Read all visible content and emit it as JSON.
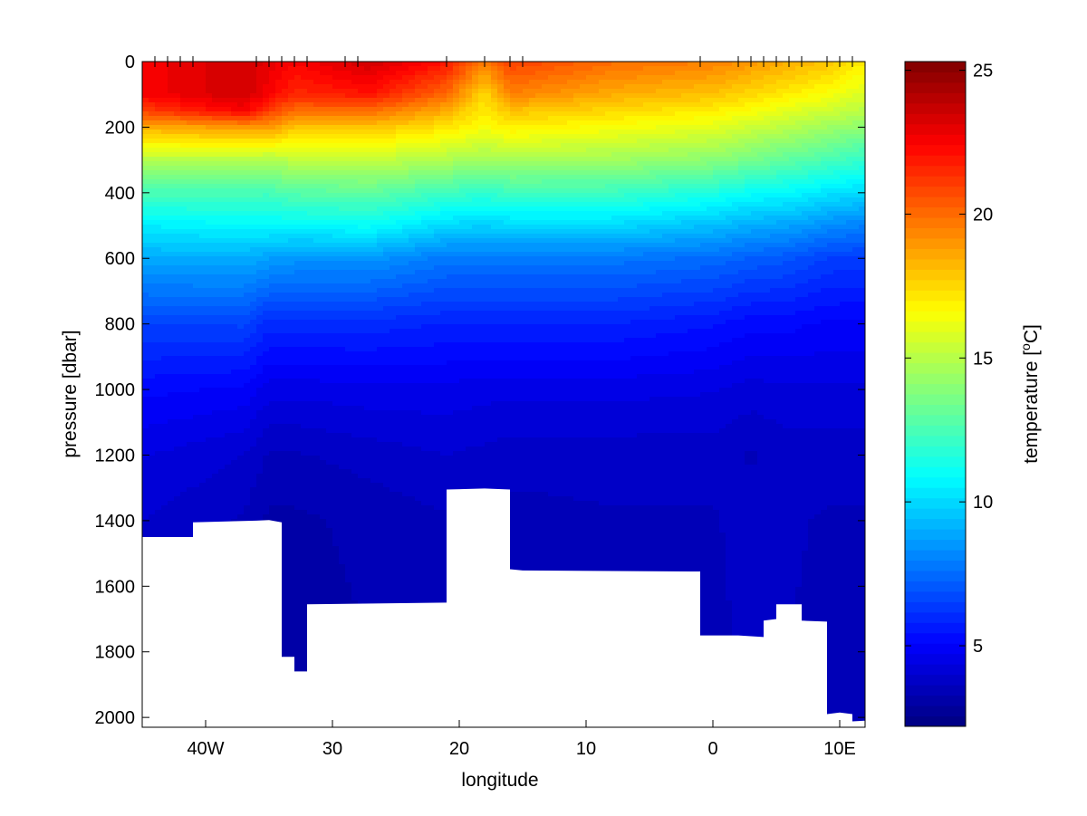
{
  "chart_data": {
    "type": "heatmap",
    "title": "",
    "xlabel": "longitude",
    "ylabel": "pressure [dbar]",
    "xlim": [
      -45,
      12
    ],
    "ylim": [
      0,
      2030
    ],
    "y_reversed": true,
    "x_ticks": [
      {
        "value": -40,
        "label": "40W"
      },
      {
        "value": -30,
        "label": "30"
      },
      {
        "value": -20,
        "label": "20"
      },
      {
        "value": -10,
        "label": "10"
      },
      {
        "value": 0,
        "label": "0"
      },
      {
        "value": 10,
        "label": "10E"
      }
    ],
    "y_ticks": [
      0,
      200,
      400,
      600,
      800,
      1000,
      1200,
      1400,
      1600,
      1800,
      2000
    ],
    "station_longitudes": [
      -44,
      -43,
      -42,
      -41,
      -36,
      -35,
      -34,
      -33,
      -32,
      -29,
      -28,
      -21,
      -18,
      -16,
      -15,
      -1,
      2,
      3,
      4,
      5,
      6,
      7,
      9,
      10,
      11
    ],
    "bottom_profile": [
      {
        "lon": -45,
        "pressure": 1450
      },
      {
        "lon": -41,
        "pressure": 1450
      },
      {
        "lon": -41,
        "pressure": 1405
      },
      {
        "lon": -36,
        "pressure": 1400
      },
      {
        "lon": -35,
        "pressure": 1398
      },
      {
        "lon": -34,
        "pressure": 1405
      },
      {
        "lon": -34,
        "pressure": 1815
      },
      {
        "lon": -33,
        "pressure": 1815
      },
      {
        "lon": -33,
        "pressure": 1860
      },
      {
        "lon": -32,
        "pressure": 1860
      },
      {
        "lon": -32,
        "pressure": 1655
      },
      {
        "lon": -21,
        "pressure": 1650
      },
      {
        "lon": -21,
        "pressure": 1305
      },
      {
        "lon": -18,
        "pressure": 1302
      },
      {
        "lon": -16,
        "pressure": 1305
      },
      {
        "lon": -16,
        "pressure": 1548
      },
      {
        "lon": -15,
        "pressure": 1552
      },
      {
        "lon": -1,
        "pressure": 1555
      },
      {
        "lon": -1,
        "pressure": 1750
      },
      {
        "lon": 2,
        "pressure": 1750
      },
      {
        "lon": 4,
        "pressure": 1755
      },
      {
        "lon": 4,
        "pressure": 1705
      },
      {
        "lon": 5,
        "pressure": 1700
      },
      {
        "lon": 5,
        "pressure": 1655
      },
      {
        "lon": 7,
        "pressure": 1655
      },
      {
        "lon": 7,
        "pressure": 1705
      },
      {
        "lon": 9,
        "pressure": 1708
      },
      {
        "lon": 9,
        "pressure": 1990
      },
      {
        "lon": 10,
        "pressure": 1985
      },
      {
        "lon": 11,
        "pressure": 1990
      },
      {
        "lon": 11,
        "pressure": 2012
      },
      {
        "lon": 12,
        "pressure": 2010
      }
    ],
    "temperature_profiles": [
      {
        "lon": -45,
        "pressure": [
          0,
          100,
          150,
          200,
          300,
          400,
          500,
          600,
          800,
          1000,
          1200,
          1400,
          2030
        ],
        "temperature": [
          22.5,
          22.5,
          21,
          18.5,
          15,
          12.5,
          10.5,
          9,
          6.5,
          5.2,
          4.4,
          4,
          3.8
        ]
      },
      {
        "lon": -37,
        "pressure": [
          0,
          100,
          150,
          200,
          300,
          400,
          500,
          600,
          800,
          1000,
          1200,
          1400,
          2030
        ],
        "temperature": [
          23.5,
          23.5,
          22.5,
          19,
          15,
          12.5,
          10.8,
          9,
          6.6,
          5,
          4,
          3.6,
          3.4
        ]
      },
      {
        "lon": -35,
        "pressure": [
          0,
          100,
          150,
          200,
          300,
          400,
          500,
          600,
          800,
          1000,
          1200,
          1400,
          2030
        ],
        "temperature": [
          23,
          22.5,
          21,
          19,
          14.8,
          12.4,
          10.8,
          8.7,
          6,
          4.5,
          3.6,
          3.2,
          3
        ]
      },
      {
        "lon": -33,
        "pressure": [
          0,
          100,
          150,
          200,
          300,
          400,
          500,
          600,
          800,
          1000,
          1200,
          1400,
          2030
        ],
        "temperature": [
          22.5,
          21.5,
          20,
          18,
          15.2,
          12.8,
          10.8,
          8.5,
          6,
          4.5,
          3.6,
          3.2,
          3
        ]
      },
      {
        "lon": -27,
        "pressure": [
          0,
          100,
          150,
          200,
          300,
          400,
          500,
          600,
          800,
          1000,
          1200,
          1400,
          2030
        ],
        "temperature": [
          23.5,
          22,
          20,
          18,
          15.3,
          13,
          11,
          8.5,
          6,
          4.6,
          3.8,
          3.4,
          3.2
        ]
      },
      {
        "lon": -21,
        "pressure": [
          0,
          100,
          150,
          200,
          300,
          400,
          500,
          600,
          800,
          1000,
          1200,
          1400,
          2030
        ],
        "temperature": [
          22,
          20,
          18.5,
          17.2,
          14.8,
          12.2,
          10,
          7.8,
          5.8,
          4.6,
          4,
          3.6,
          3.5
        ]
      },
      {
        "lon": -18,
        "pressure": [
          0,
          100,
          150,
          200,
          300,
          400,
          500,
          600,
          800,
          1000,
          1200,
          1400,
          2030
        ],
        "temperature": [
          19.5,
          17.5,
          17,
          16.5,
          14.5,
          12,
          9.8,
          7.8,
          5.8,
          4.5,
          3.9,
          3.6,
          3.5
        ]
      },
      {
        "lon": -16,
        "pressure": [
          0,
          100,
          150,
          200,
          300,
          400,
          500,
          600,
          800,
          1000,
          1200,
          1400,
          2030
        ],
        "temperature": [
          21,
          19.5,
          18,
          17,
          14.7,
          12.2,
          10,
          7.8,
          5.8,
          4.5,
          3.8,
          3.5,
          3.4
        ]
      },
      {
        "lon": -8,
        "pressure": [
          0,
          100,
          150,
          200,
          300,
          400,
          500,
          600,
          800,
          1000,
          1200,
          1400,
          2030
        ],
        "temperature": [
          20,
          18.5,
          17.5,
          16.5,
          14.5,
          12.2,
          10,
          7.8,
          5.8,
          4.5,
          3.8,
          3.6,
          3.5
        ]
      },
      {
        "lon": 0,
        "pressure": [
          0,
          100,
          150,
          200,
          300,
          400,
          500,
          600,
          800,
          1000,
          1200,
          1400,
          2030
        ],
        "temperature": [
          19.5,
          18,
          17,
          16,
          14,
          11.5,
          9.4,
          7.5,
          5.5,
          4.4,
          3.8,
          3.6,
          3.5
        ]
      },
      {
        "lon": 3,
        "pressure": [
          0,
          100,
          150,
          200,
          300,
          400,
          500,
          600,
          800,
          1000,
          1200,
          1400,
          2030
        ],
        "temperature": [
          19,
          17.5,
          16.5,
          15.5,
          13.5,
          11,
          9,
          7.2,
          5.2,
          4.2,
          3.6,
          3.8,
          3.7
        ]
      },
      {
        "lon": 6,
        "pressure": [
          0,
          100,
          150,
          200,
          300,
          400,
          500,
          600,
          800,
          1000,
          1200,
          1400,
          2030
        ],
        "temperature": [
          18.5,
          17,
          16,
          15,
          13,
          10.8,
          8.8,
          7,
          5.2,
          4.3,
          3.8,
          3.7,
          3.6
        ]
      },
      {
        "lon": 9,
        "pressure": [
          0,
          100,
          150,
          200,
          300,
          400,
          500,
          600,
          800,
          1000,
          1200,
          1400,
          2030
        ],
        "temperature": [
          18,
          16.5,
          15.5,
          14.5,
          12.5,
          10.3,
          8.3,
          6.5,
          5,
          4.3,
          3.8,
          3.6,
          3.5
        ]
      },
      {
        "lon": 12,
        "pressure": [
          0,
          100,
          150,
          200,
          300,
          400,
          500,
          600,
          800,
          1000,
          1200,
          1400,
          2030
        ],
        "temperature": [
          17,
          15.8,
          15,
          14,
          12,
          10,
          8,
          6.4,
          5,
          4.3,
          3.8,
          3.6,
          3.5
        ]
      }
    ],
    "colorbar": {
      "label": "temperature [",
      "label_superscript": "o",
      "label_suffix": "C]",
      "min": 2.2,
      "max": 25.3,
      "ticks": [
        5,
        10,
        15,
        20,
        25
      ],
      "colormap": "jet"
    }
  }
}
